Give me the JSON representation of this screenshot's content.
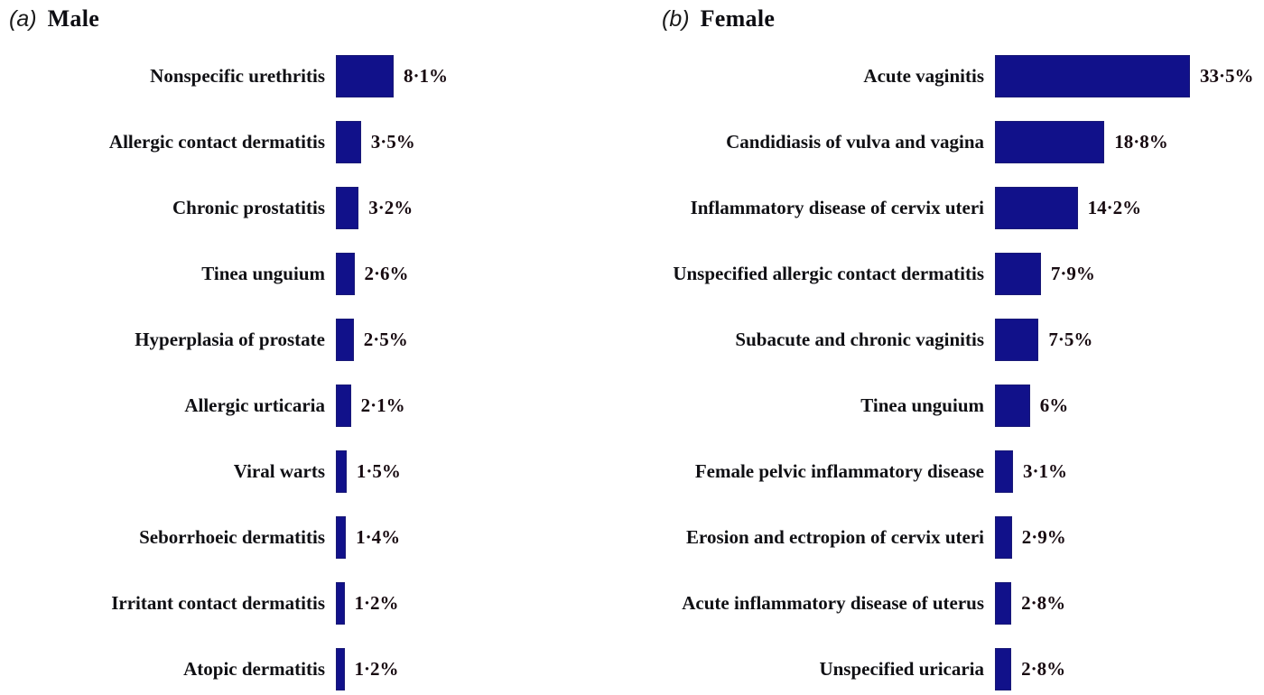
{
  "figure": {
    "background": "#ffffff",
    "bar_color": "#11118a",
    "category_label_color": "#101014",
    "value_label_color": "#170a10"
  },
  "chart_data": [
    {
      "type": "bar",
      "orientation": "horizontal",
      "panel_letter": "(a)",
      "title": "Male",
      "legend": "none",
      "grid": false,
      "axes_hidden": true,
      "bar_color": "#11118a",
      "categories": [
        "Nonspecific urethritis",
        "Allergic contact dermatitis",
        "Chronic prostatitis",
        "Tinea unguium",
        "Hyperplasia of prostate",
        "Allergic urticaria",
        "Viral warts",
        "Seborrhoeic dermatitis",
        "Irritant contact dermatitis",
        "Atopic dermatitis"
      ],
      "values": [
        8.1,
        3.5,
        3.2,
        2.6,
        2.5,
        2.1,
        1.5,
        1.4,
        1.2,
        1.2
      ],
      "value_labels": [
        "8·1%",
        "3·5%",
        "3·2%",
        "2·6%",
        "2·5%",
        "2·1%",
        "1·5%",
        "1·4%",
        "1·2%",
        "1·2%"
      ]
    },
    {
      "type": "bar",
      "orientation": "horizontal",
      "panel_letter": "(b)",
      "title": "Female",
      "legend": "none",
      "grid": false,
      "axes_hidden": true,
      "bar_color": "#11118a",
      "categories": [
        "Acute vaginitis",
        "Candidiasis of vulva and vagina",
        "Inflammatory disease of cervix uteri",
        "Unspecified allergic contact dermatitis",
        "Subacute and chronic vaginitis",
        "Tinea unguium",
        "Female pelvic inflammatory disease",
        "Erosion and ectropion of cervix uteri",
        "Acute inflammatory disease of uterus",
        "Unspecified uricaria"
      ],
      "values": [
        33.5,
        18.8,
        14.2,
        7.9,
        7.5,
        6.0,
        3.1,
        2.9,
        2.8,
        2.8
      ],
      "value_labels": [
        "33·5%",
        "18·8%",
        "14·2%",
        "7·9%",
        "7·5%",
        "6%",
        "3·1%",
        "2·9%",
        "2·8%",
        "2·8%"
      ]
    }
  ]
}
